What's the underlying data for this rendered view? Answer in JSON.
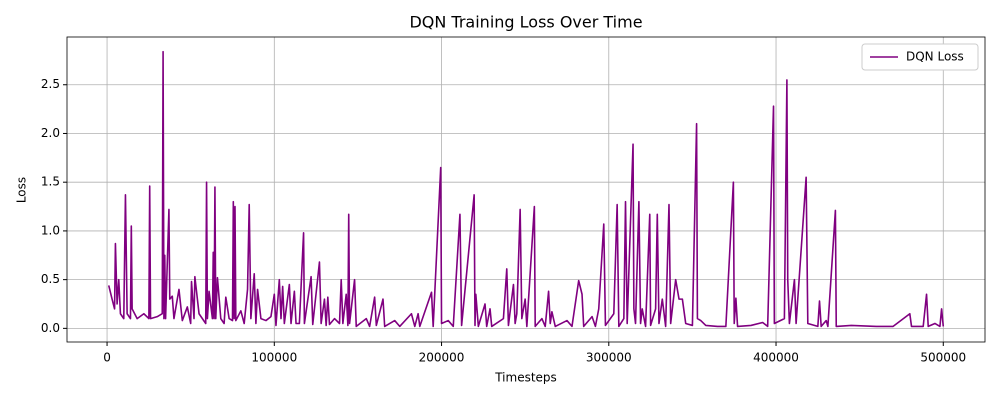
{
  "chart_data": {
    "type": "line",
    "title": "DQN Training Loss Over Time",
    "x_label": "Timesteps",
    "y_label": "Loss",
    "xlim": [
      -23950,
      524950
    ],
    "xticks": [
      0,
      100000,
      200000,
      300000,
      400000,
      500000
    ],
    "ylim": [
      -0.14,
      2.99
    ],
    "yticks": [
      {
        "value": 0,
        "label": "0.0"
      },
      {
        "value": 0.5,
        "label": "0.5"
      },
      {
        "value": 1,
        "label": "1.0"
      },
      {
        "value": 1.5,
        "label": "1.5"
      },
      {
        "value": 2,
        "label": "2.0"
      },
      {
        "value": 2.5,
        "label": "2.5"
      }
    ],
    "grid": true,
    "legend": "upper right",
    "x": [
      1000,
      3000,
      4500,
      5000,
      6000,
      7000,
      8000,
      10000,
      11000,
      12000,
      14000,
      14500,
      15000,
      18000,
      22000,
      25000,
      25500,
      26000,
      30000,
      33000,
      33500,
      34000,
      34500,
      35000,
      37000,
      37500,
      39000,
      40000,
      43000,
      45000,
      48000,
      50000,
      50500,
      52000,
      52500,
      55000,
      59000,
      59500,
      60000,
      61000,
      63000,
      63500,
      64000,
      64500,
      65000,
      66000,
      68000,
      70000,
      71000,
      73000,
      75000,
      75500,
      76000,
      76500,
      77000,
      80000,
      82000,
      84000,
      85000,
      86000,
      88000,
      89000,
      90000,
      92000,
      95000,
      98000,
      100000,
      101000,
      103000,
      104000,
      105000,
      106000,
      109000,
      110000,
      112000,
      113000,
      115000,
      117500,
      118000,
      122000,
      123000,
      127000,
      128000,
      130000,
      131000,
      132000,
      133000,
      136000,
      139000,
      140000,
      141000,
      143000,
      144000,
      144500,
      145000,
      148000,
      149000,
      155000,
      157000,
      160000,
      161000,
      165000,
      166000,
      172000,
      175000,
      182000,
      184000,
      186000,
      187000,
      194000,
      195000,
      199500,
      200000,
      204000,
      207000,
      211000,
      212000,
      219500,
      220000,
      220500,
      222000,
      226000,
      227000,
      229000,
      230000,
      237000,
      239000,
      240000,
      243000,
      244000,
      245000,
      247000,
      248000,
      250000,
      251000,
      255500,
      256000,
      260000,
      262000,
      264000,
      265000,
      266000,
      268000,
      275000,
      278000,
      282000,
      284000,
      285000,
      290000,
      292000,
      294000,
      297000,
      298000,
      303000,
      305000,
      306000,
      309000,
      310000,
      311000,
      314500,
      315000,
      316000,
      318000,
      319000,
      320000,
      322000,
      324500,
      325000,
      328000,
      329000,
      330000,
      332000,
      334000,
      336000,
      337000,
      340000,
      342000,
      344000,
      346000,
      350000,
      352500,
      353000,
      355000,
      358000,
      365000,
      370000,
      374500,
      375000,
      376000,
      377000,
      385000,
      392000,
      395000,
      398500,
      399000,
      405000,
      406500,
      407000,
      408000,
      411000,
      412000,
      418000,
      419000,
      425000,
      426000,
      427000,
      430000,
      431000,
      435500,
      436000,
      445000,
      460000,
      470000,
      480000,
      481000,
      488000,
      490000,
      491000,
      495000,
      498000,
      499000,
      500000
    ],
    "series": [
      {
        "name": "DQN Loss",
        "color": "#800080",
        "values": [
          0.44,
          0.3,
          0.2,
          0.87,
          0.25,
          0.5,
          0.15,
          0.1,
          1.37,
          0.15,
          0.1,
          1.05,
          0.2,
          0.1,
          0.15,
          0.1,
          1.46,
          0.1,
          0.12,
          0.15,
          2.84,
          0.1,
          0.75,
          0.1,
          1.22,
          0.3,
          0.33,
          0.1,
          0.4,
          0.08,
          0.22,
          0.05,
          0.48,
          0.1,
          0.53,
          0.15,
          0.05,
          1.5,
          0.1,
          0.38,
          0.1,
          0.78,
          0.1,
          1.45,
          0.1,
          0.52,
          0.1,
          0.05,
          0.32,
          0.1,
          0.08,
          1.3,
          0.1,
          1.25,
          0.08,
          0.18,
          0.05,
          0.4,
          1.27,
          0.1,
          0.56,
          0.05,
          0.4,
          0.1,
          0.08,
          0.12,
          0.35,
          0.03,
          0.5,
          0.1,
          0.43,
          0.05,
          0.45,
          0.05,
          0.38,
          0.05,
          0.05,
          0.98,
          0.05,
          0.53,
          0.04,
          0.68,
          0.05,
          0.3,
          0.03,
          0.32,
          0.04,
          0.1,
          0.05,
          0.5,
          0.05,
          0.35,
          0.03,
          1.17,
          0.05,
          0.5,
          0.02,
          0.1,
          0.02,
          0.32,
          0.03,
          0.3,
          0.02,
          0.08,
          0.02,
          0.15,
          0.02,
          0.15,
          0.02,
          0.37,
          0.02,
          1.65,
          0.05,
          0.08,
          0.02,
          1.17,
          0.03,
          1.37,
          0.03,
          0.35,
          0.02,
          0.25,
          0.02,
          0.2,
          0.02,
          0.1,
          0.61,
          0.03,
          0.45,
          0.05,
          0.15,
          1.22,
          0.1,
          0.3,
          0.02,
          1.25,
          0.02,
          0.1,
          0.02,
          0.38,
          0.05,
          0.17,
          0.02,
          0.08,
          0.02,
          0.49,
          0.35,
          0.02,
          0.12,
          0.02,
          0.2,
          1.07,
          0.03,
          0.15,
          1.27,
          0.02,
          0.1,
          1.3,
          0.05,
          1.89,
          0.2,
          0.05,
          1.3,
          0.05,
          0.2,
          0.02,
          1.17,
          0.03,
          0.2,
          1.17,
          0.05,
          0.3,
          0.02,
          1.27,
          0.05,
          0.5,
          0.3,
          0.3,
          0.05,
          0.03,
          2.1,
          0.1,
          0.08,
          0.03,
          0.02,
          0.02,
          1.5,
          0.05,
          0.31,
          0.02,
          0.03,
          0.06,
          0.02,
          2.28,
          0.05,
          0.1,
          2.55,
          0.5,
          0.05,
          0.5,
          0.05,
          1.55,
          0.05,
          0.02,
          0.28,
          0.02,
          0.08,
          0.02,
          1.21,
          0.02,
          0.03,
          0.02,
          0.02,
          0.15,
          0.02,
          0.02,
          0.35,
          0.02,
          0.05,
          0.02,
          0.2,
          0.02
        ]
      }
    ]
  }
}
